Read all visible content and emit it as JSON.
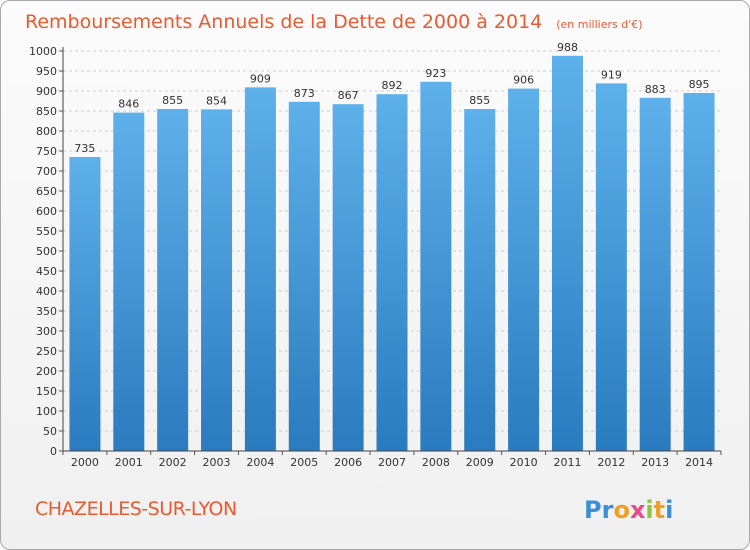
{
  "chart_data": {
    "type": "bar",
    "title": "Remboursements Annuels de la Dette de 2000 à 2014",
    "subtitle": "(en milliers d'€)",
    "categories": [
      "2000",
      "2001",
      "2002",
      "2003",
      "2004",
      "2005",
      "2006",
      "2007",
      "2008",
      "2009",
      "2010",
      "2011",
      "2012",
      "2013",
      "2014"
    ],
    "values": [
      735,
      846,
      855,
      854,
      909,
      873,
      867,
      892,
      923,
      855,
      906,
      988,
      919,
      883,
      895
    ],
    "ylim": [
      0,
      1000
    ],
    "ytick_step": 50,
    "grid": true,
    "xlabel": "",
    "ylabel": "",
    "bar_color_top": "#5eb0ea",
    "bar_color_bottom": "#2a7bbf",
    "title_color": "#e85a30"
  },
  "footer": {
    "city": "CHAZELLES-SUR-LYON",
    "logo_letters": [
      {
        "ch": "P",
        "color": "#3b8fd6"
      },
      {
        "ch": "r",
        "color": "#3b8fd6"
      },
      {
        "ch": "o",
        "color": "#f0a020"
      },
      {
        "ch": "x",
        "color": "#e84a8a"
      },
      {
        "ch": "i",
        "color": "#8cc63f"
      },
      {
        "ch": "t",
        "color": "#f0a020"
      },
      {
        "ch": "i",
        "color": "#3b8fd6"
      }
    ]
  }
}
